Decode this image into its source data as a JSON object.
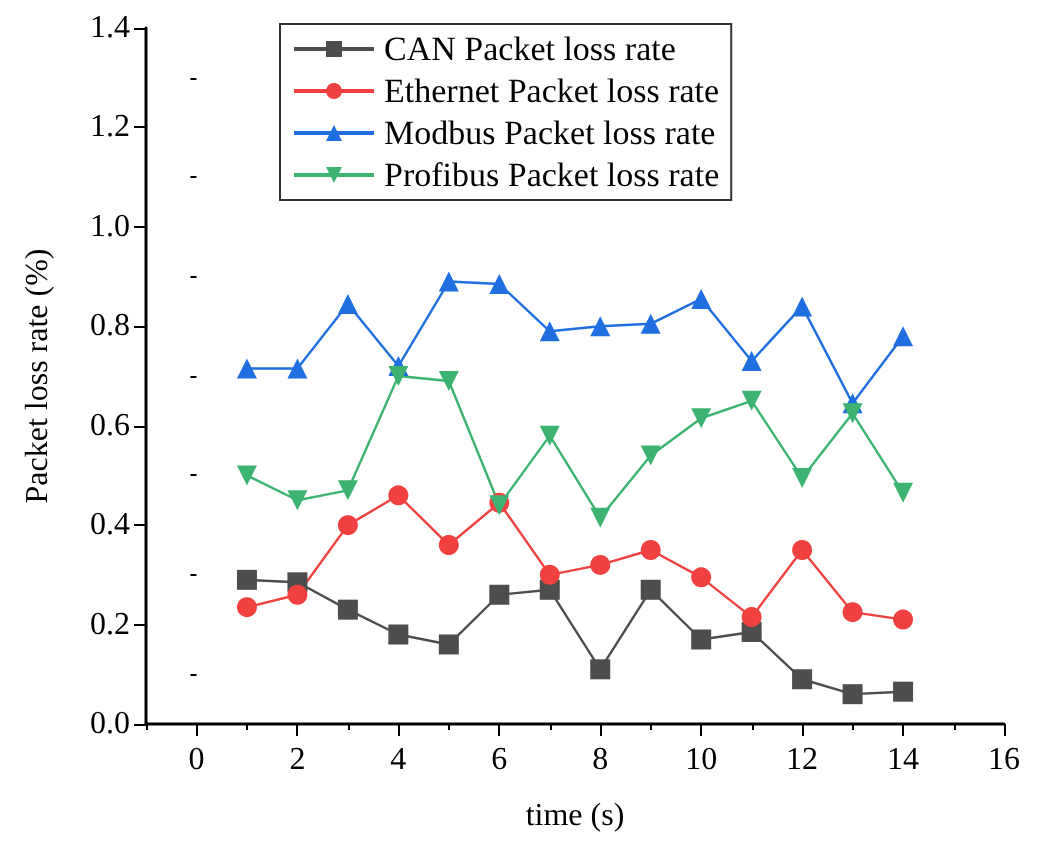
{
  "chart_data": {
    "type": "line",
    "xlabel": "time (s)",
    "ylabel": "Packet loss rate (%)",
    "x": [
      1,
      2,
      3,
      4,
      5,
      6,
      7,
      8,
      9,
      10,
      11,
      12,
      13,
      14
    ],
    "series": [
      {
        "name": "CAN Packet loss rate",
        "color": "#4d4d4d",
        "marker": "square",
        "values": [
          0.29,
          0.285,
          0.23,
          0.18,
          0.16,
          0.26,
          0.27,
          0.11,
          0.27,
          0.17,
          0.185,
          0.09,
          0.06,
          0.065
        ]
      },
      {
        "name": "Ethernet Packet loss rate",
        "color": "#f04040",
        "marker": "circle",
        "values": [
          0.235,
          0.26,
          0.4,
          0.46,
          0.36,
          0.445,
          0.3,
          0.32,
          0.35,
          0.295,
          0.215,
          0.35,
          0.225,
          0.21
        ]
      },
      {
        "name": "Modbus Packet loss rate",
        "color": "#1f6fe0",
        "marker": "triangle",
        "values": [
          0.715,
          0.715,
          0.845,
          0.72,
          0.89,
          0.885,
          0.79,
          0.8,
          0.805,
          0.855,
          0.73,
          0.84,
          0.645,
          0.78
        ]
      },
      {
        "name": "Profibus Packet loss rate",
        "color": "#3cb371",
        "marker": "triangle-down",
        "values": [
          0.5,
          0.45,
          0.47,
          0.7,
          0.69,
          0.44,
          0.58,
          0.415,
          0.54,
          0.615,
          0.65,
          0.495,
          0.625,
          0.465
        ]
      }
    ],
    "xlim": [
      -1,
      16
    ],
    "xticks": [
      0,
      2,
      4,
      6,
      8,
      10,
      12,
      14,
      16
    ],
    "ylim": [
      0,
      1.4
    ],
    "yticks": [
      {
        "value": 0,
        "label": "0.0"
      },
      {
        "value": 0.2,
        "label": "0.2"
      },
      {
        "value": 0.4,
        "label": "0.4"
      },
      {
        "value": 0.6,
        "label": "0.6"
      },
      {
        "value": 0.8,
        "label": "0.8"
      },
      {
        "value": 1,
        "label": "1.0"
      },
      {
        "value": 1.2,
        "label": "1.2"
      },
      {
        "value": 1.4,
        "label": "1.4"
      }
    ],
    "grid": false,
    "legend": "top left"
  }
}
